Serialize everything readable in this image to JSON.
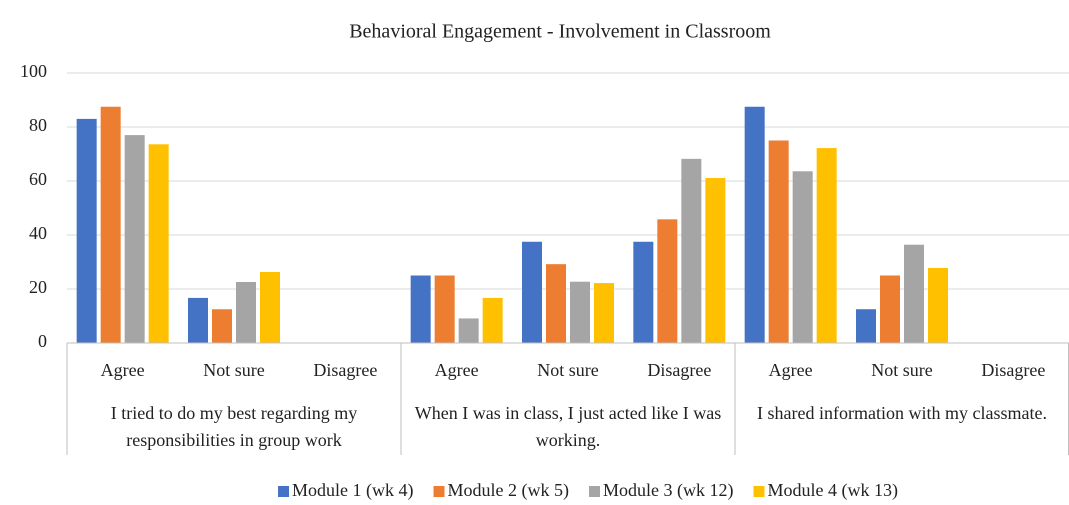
{
  "chart_data": {
    "type": "bar",
    "title": "Behavioral Engagement - Involvement in Classroom",
    "groups": [
      "I tried to do my best regarding my responsibilities in group work",
      "When I was in class, I just acted like I was working.",
      "I shared information with my classmate."
    ],
    "categories": [
      "Agree",
      "Not sure",
      "Disagree",
      "Agree",
      "Not sure",
      "Disagree",
      "Agree",
      "Not sure",
      "Disagree"
    ],
    "series": [
      {
        "name": "Module 1 (wk 4)",
        "color": "#4472c4",
        "values": [
          83,
          16.7,
          0,
          25,
          37.5,
          37.5,
          87.5,
          12.5,
          0
        ]
      },
      {
        "name": "Module 2 (wk 5)",
        "color": "#ed7d31",
        "values": [
          87.5,
          12.5,
          0,
          25,
          29.2,
          45.8,
          75,
          25,
          0
        ]
      },
      {
        "name": "Module 3 (wk 12)",
        "color": "#a5a5a5",
        "values": [
          77,
          22.6,
          0,
          9.1,
          22.7,
          68.2,
          63.6,
          36.4,
          0
        ]
      },
      {
        "name": "Module 4 (wk 13)",
        "color": "#ffc000",
        "values": [
          73.6,
          26.3,
          0,
          16.7,
          22.2,
          61.1,
          72.2,
          27.8,
          0
        ]
      }
    ],
    "ylim": [
      0,
      100
    ],
    "yticks": [
      0,
      20,
      40,
      60,
      80,
      100
    ],
    "grid": true,
    "legend": "bottom"
  }
}
